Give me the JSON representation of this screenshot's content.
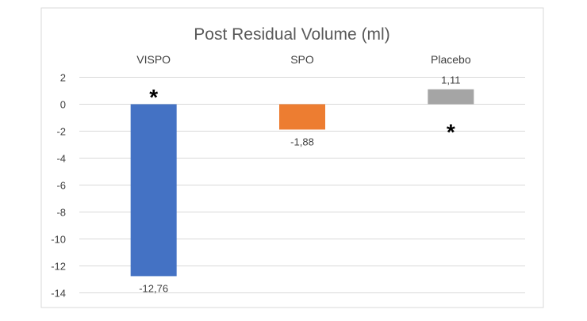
{
  "chart_data": {
    "type": "bar",
    "title": "Post Residual Volume (ml)",
    "xlabel": "",
    "ylabel": "",
    "categories": [
      "VISPO",
      "SPO",
      "Placebo"
    ],
    "values": [
      -12.76,
      -1.88,
      1.11
    ],
    "data_labels": [
      "-12,76",
      "-1,88",
      "1,11"
    ],
    "colors": [
      "#4472c4",
      "#ed7d31",
      "#a5a5a5"
    ],
    "ylim": [
      -14,
      2
    ],
    "yticks": [
      2,
      0,
      -2,
      -4,
      -6,
      -8,
      -10,
      -12,
      -14
    ],
    "category_labels_position": "top",
    "grid": true,
    "legend": "none",
    "annotations": [
      {
        "text": "*",
        "category": "VISPO",
        "y": 0.8
      },
      {
        "text": "*",
        "category": "Placebo",
        "y": -1.8
      }
    ]
  }
}
